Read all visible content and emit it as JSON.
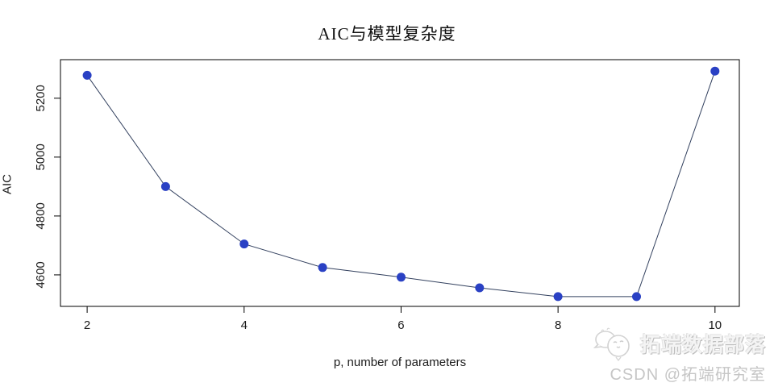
{
  "title": "AIC与模型复杂度",
  "watermark": {
    "mascot_icon": "chick-mascot-icon",
    "line1": "拓端数据部落",
    "line2": "CSDN @拓端研究室"
  },
  "chart_data": {
    "type": "line",
    "title": "AIC与模型复杂度",
    "xlabel": "p, number of parameters",
    "ylabel": "AIC",
    "x": [
      2,
      3,
      4,
      5,
      6,
      7,
      8,
      9,
      10
    ],
    "y": [
      5278,
      4900,
      4705,
      4625,
      4592,
      4556,
      4526,
      4526,
      5292
    ],
    "x_ticks": [
      2,
      4,
      6,
      8,
      10
    ],
    "y_ticks": [
      4600,
      4800,
      5000,
      5200
    ],
    "xlim": [
      1.66,
      10.31
    ],
    "ylim": [
      4493,
      5331
    ],
    "grid": false,
    "boxed_frame": true,
    "legend": "none",
    "point_color": "#2a41c4",
    "line_color": "#32405e",
    "axis_color": "#000000",
    "tick_label_color": "#1a1a1a"
  }
}
